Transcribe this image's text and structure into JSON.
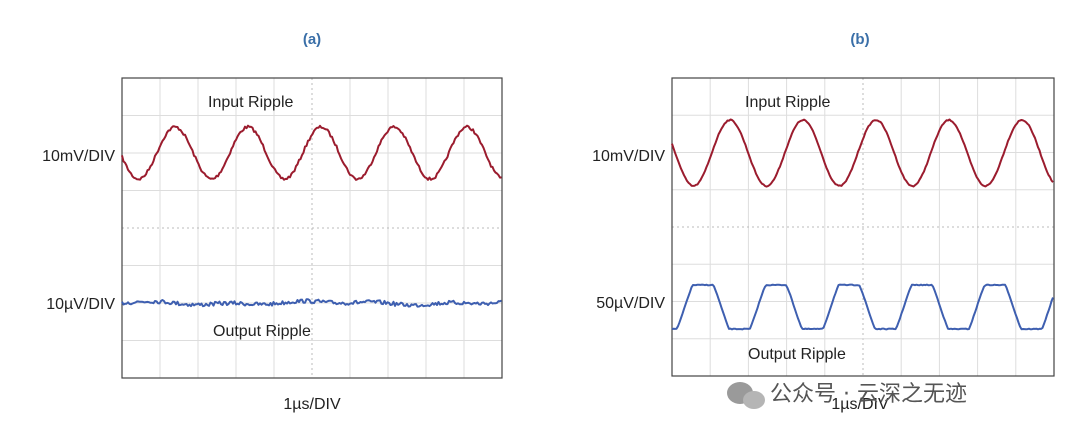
{
  "panels": [
    {
      "tag": "(a)",
      "top_trace": "Input Ripple",
      "top_scale": "10mV/DIV",
      "bottom_scale": "10µV/DIV",
      "bottom_trace": "Output Ripple",
      "time_scale": "1µs/DIV"
    },
    {
      "tag": "(b)",
      "top_trace": "Input Ripple",
      "top_scale": "10mV/DIV",
      "bottom_scale": "50µV/DIV",
      "bottom_trace": "Output Ripple",
      "time_scale": "1µs/DIV"
    }
  ],
  "watermark": "公众号 · 云深之无迹"
}
